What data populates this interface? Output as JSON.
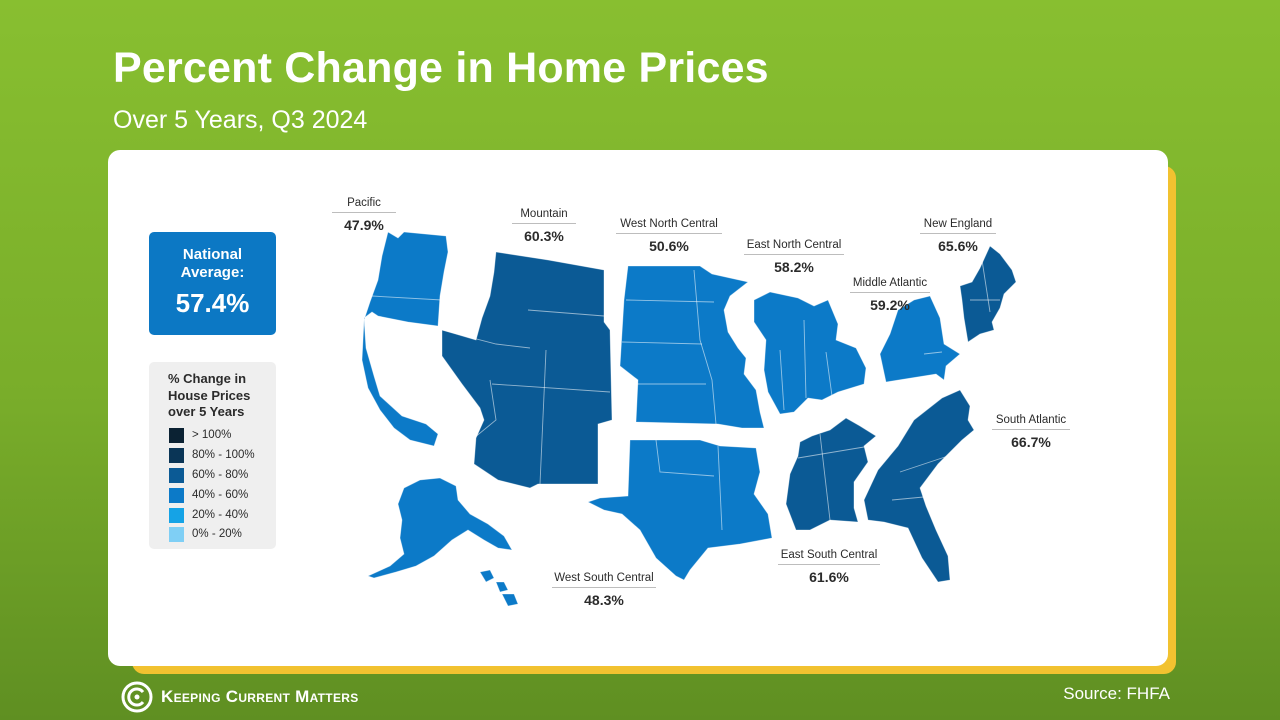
{
  "header": {
    "title": "Percent Change in Home Prices",
    "subtitle": "Over 5 Years, Q3 2024"
  },
  "national": {
    "label": "National Average:",
    "value": "57.4%"
  },
  "legend": {
    "title": "% Change in House Prices over 5 Years",
    "items": [
      {
        "label": "> 100%",
        "color": "#0b2233"
      },
      {
        "label": "80% - 100%",
        "color": "#0a3556"
      },
      {
        "label": "60% - 80%",
        "color": "#0b5a95"
      },
      {
        "label": "40% - 60%",
        "color": "#0c7ac8"
      },
      {
        "label": "20% - 40%",
        "color": "#15a3e6"
      },
      {
        "label": "0% - 20%",
        "color": "#7fcff5"
      }
    ]
  },
  "regions": [
    {
      "name": "Pacific",
      "value": "47.9%",
      "color": "#0c7ac8"
    },
    {
      "name": "Mountain",
      "value": "60.3%",
      "color": "#0b5a95"
    },
    {
      "name": "West North Central",
      "value": "50.6%",
      "color": "#0c7ac8"
    },
    {
      "name": "East North Central",
      "value": "58.2%",
      "color": "#0c7ac8"
    },
    {
      "name": "Middle Atlantic",
      "value": "59.2%",
      "color": "#0c7ac8"
    },
    {
      "name": "New England",
      "value": "65.6%",
      "color": "#0b5a95"
    },
    {
      "name": "South Atlantic",
      "value": "66.7%",
      "color": "#0b5a95"
    },
    {
      "name": "East South Central",
      "value": "61.6%",
      "color": "#0b5a95"
    },
    {
      "name": "West South Central",
      "value": "48.3%",
      "color": "#0c7ac8"
    }
  ],
  "footer": {
    "brand": "Keeping Current Matters",
    "source": "Source: FHFA"
  }
}
